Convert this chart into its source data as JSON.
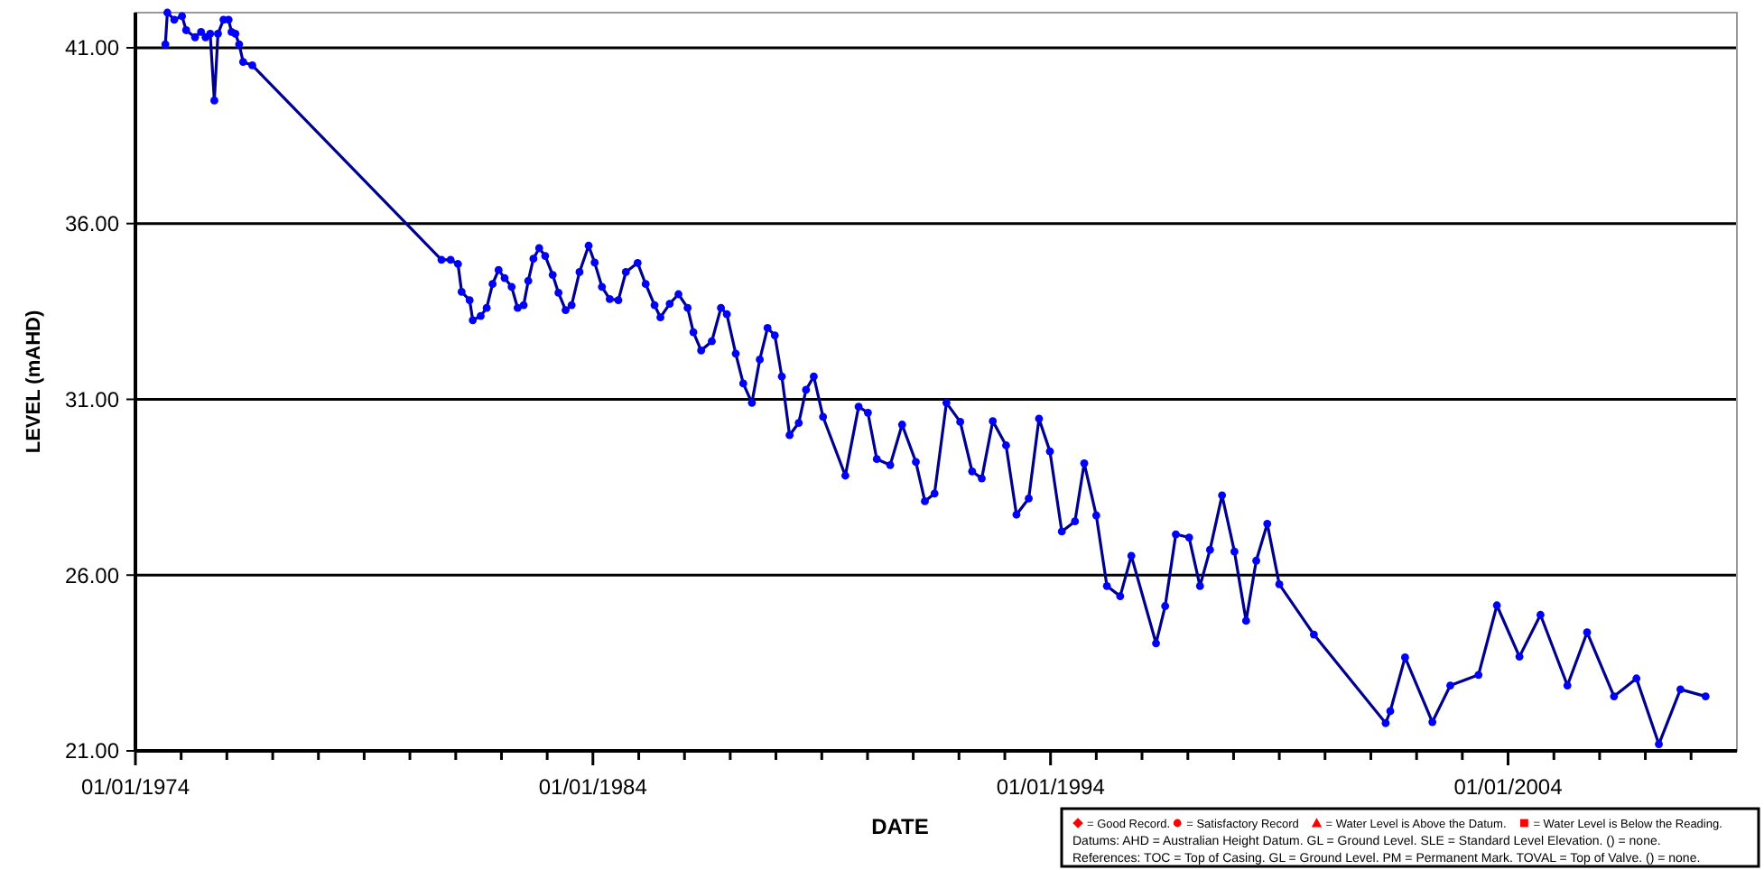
{
  "chart_data": {
    "type": "line",
    "xlabel": "DATE",
    "ylabel": "LEVEL (mAHD)",
    "xlim": [
      "1974-01-01",
      "2009-01-01"
    ],
    "xticks": [
      {
        "value": "1974-01-01",
        "label": "01/01/1974"
      },
      {
        "value": "1975-01-01",
        "label": null
      },
      {
        "value": "1976-01-01",
        "label": null
      },
      {
        "value": "1977-01-01",
        "label": null
      },
      {
        "value": "1978-01-01",
        "label": null
      },
      {
        "value": "1979-01-01",
        "label": null
      },
      {
        "value": "1980-01-01",
        "label": null
      },
      {
        "value": "1981-01-01",
        "label": null
      },
      {
        "value": "1982-01-01",
        "label": null
      },
      {
        "value": "1983-01-01",
        "label": null
      },
      {
        "value": "1984-01-01",
        "label": "01/01/1984"
      },
      {
        "value": "1985-01-01",
        "label": null
      },
      {
        "value": "1986-01-01",
        "label": null
      },
      {
        "value": "1987-01-01",
        "label": null
      },
      {
        "value": "1988-01-01",
        "label": null
      },
      {
        "value": "1989-01-01",
        "label": null
      },
      {
        "value": "1990-01-01",
        "label": null
      },
      {
        "value": "1991-01-01",
        "label": null
      },
      {
        "value": "1992-01-01",
        "label": null
      },
      {
        "value": "1993-01-01",
        "label": null
      },
      {
        "value": "1994-01-01",
        "label": "01/01/1994"
      },
      {
        "value": "1995-01-01",
        "label": null
      },
      {
        "value": "1996-01-01",
        "label": null
      },
      {
        "value": "1997-01-01",
        "label": null
      },
      {
        "value": "1998-01-01",
        "label": null
      },
      {
        "value": "1999-01-01",
        "label": null
      },
      {
        "value": "2000-01-01",
        "label": null
      },
      {
        "value": "2001-01-01",
        "label": null
      },
      {
        "value": "2002-01-01",
        "label": null
      },
      {
        "value": "2003-01-01",
        "label": null
      },
      {
        "value": "2004-01-01",
        "label": "01/01/2004"
      },
      {
        "value": "2005-01-01",
        "label": null
      },
      {
        "value": "2006-01-01",
        "label": null
      },
      {
        "value": "2007-01-01",
        "label": null
      },
      {
        "value": "2008-01-01",
        "label": null
      }
    ],
    "ylim": [
      21,
      42
    ],
    "yticks": [
      {
        "value": 21,
        "label": "21.00"
      },
      {
        "value": 26,
        "label": "26.00"
      },
      {
        "value": 31,
        "label": "31.00"
      },
      {
        "value": 36,
        "label": "36.00"
      },
      {
        "value": 41,
        "label": "41.00"
      }
    ],
    "grid": "y",
    "marker": "circle",
    "line_style": "solid",
    "x": [
      "1974-08-28",
      "1974-09-13",
      "1974-11-07",
      "1975-01-08",
      "1975-02-10",
      "1975-04-22",
      "1975-06-09",
      "1975-07-15",
      "1975-08-21",
      "1975-09-23",
      "1975-10-22",
      "1975-12-05",
      "1976-01-15",
      "1976-02-07",
      "1976-03-09",
      "1976-04-08",
      "1976-05-10",
      "1976-07-22",
      "1980-09-09",
      "1980-11-21",
      "1981-01-19",
      "1981-02-17",
      "1981-04-22",
      "1981-05-17",
      "1981-07-19",
      "1981-09-05",
      "1981-10-22",
      "1981-12-09",
      "1982-01-26",
      "1982-03-23",
      "1982-05-10",
      "1982-06-27",
      "1982-08-03",
      "1982-09-13",
      "1982-10-29",
      "1982-12-16",
      "1983-02-14",
      "1983-04-01",
      "1983-05-28",
      "1983-07-15",
      "1983-09-16",
      "1983-11-28",
      "1984-01-15",
      "1984-03-13",
      "1984-05-14",
      "1984-07-22",
      "1984-09-20",
      "1984-12-23",
      "1985-02-25",
      "1985-05-07",
      "1985-06-23",
      "1985-09-05",
      "1985-11-14",
      "1986-01-26",
      "1986-03-13",
      "1986-05-14",
      "1986-08-07",
      "1986-10-19",
      "1986-12-05",
      "1987-02-14",
      "1987-04-15",
      "1987-06-23",
      "1987-08-25",
      "1987-10-26",
      "1987-12-23",
      "1988-02-17",
      "1988-04-19",
      "1988-07-01",
      "1988-08-28",
      "1988-10-29",
      "1989-01-11",
      "1989-07-08",
      "1989-10-22",
      "1990-01-04",
      "1990-03-16",
      "1990-07-01",
      "1990-10-04",
      "1991-01-22",
      "1991-04-04",
      "1991-06-20",
      "1991-09-23",
      "1992-01-11",
      "1992-04-15",
      "1992-07-01",
      "1992-09-27",
      "1993-01-11",
      "1993-04-04",
      "1993-07-11",
      "1993-10-01",
      "1993-12-27",
      "1994-04-01",
      "1994-07-15",
      "1994-09-27",
      "1995-01-01",
      "1995-03-27",
      "1995-07-11",
      "1995-10-08",
      "1996-04-22",
      "1996-07-04",
      "1996-09-27",
      "1997-01-11",
      "1997-04-08",
      "1997-06-27",
      "1997-10-01",
      "1998-01-08",
      "1998-04-11",
      "1998-07-01",
      "1998-09-27",
      "1999-01-01",
      "1999-10-04",
      "2001-04-29",
      "2001-06-05",
      "2001-10-01",
      "2002-05-07",
      "2002-09-27",
      "2003-05-10",
      "2003-10-04",
      "2004-04-01",
      "2004-09-16",
      "2005-04-19",
      "2005-09-23",
      "2006-04-26",
      "2006-10-22",
      "2007-04-19",
      "2007-10-08",
      "2008-04-26"
    ],
    "series": [
      {
        "color": "#0000ff",
        "values": [
          41.1,
          42.0,
          41.8,
          41.9,
          41.5,
          41.3,
          41.45,
          41.3,
          41.4,
          39.5,
          41.4,
          41.8,
          41.8,
          41.45,
          41.4,
          41.1,
          40.6,
          40.5,
          34.97,
          34.97,
          34.85,
          34.06,
          33.82,
          33.25,
          33.37,
          33.6,
          34.28,
          34.68,
          34.45,
          34.2,
          33.6,
          33.68,
          34.37,
          35.0,
          35.3,
          35.08,
          34.54,
          34.03,
          33.54,
          33.68,
          34.62,
          35.37,
          34.89,
          34.2,
          33.85,
          33.82,
          34.62,
          34.88,
          34.28,
          33.68,
          33.33,
          33.72,
          33.99,
          33.6,
          32.91,
          32.39,
          32.65,
          33.6,
          33.42,
          32.3,
          31.45,
          30.9,
          32.13,
          33.03,
          32.82,
          31.65,
          29.98,
          30.33,
          31.27,
          31.65,
          30.5,
          28.83,
          30.79,
          30.62,
          29.3,
          29.13,
          30.28,
          29.22,
          28.1,
          28.32,
          30.9,
          30.36,
          28.95,
          28.75,
          30.38,
          29.69,
          27.72,
          28.18,
          30.45,
          29.52,
          27.24,
          27.53,
          29.18,
          27.7,
          25.69,
          25.4,
          26.55,
          24.06,
          25.12,
          27.16,
          27.07,
          25.69,
          26.72,
          28.27,
          26.67,
          24.7,
          26.41,
          27.46,
          25.74,
          24.31,
          21.79,
          22.13,
          23.66,
          21.82,
          22.86,
          23.16,
          25.14,
          23.68,
          24.87,
          22.86,
          24.37,
          22.55,
          23.06,
          21.19,
          22.75,
          22.55
        ]
      }
    ],
    "annotations": [
      "= Good Record.",
      "= Satisfactory Record",
      "= Water Level is Above the Datum.",
      "= Water Level is Below the Reading.",
      "Datums: AHD = Australian Height Datum. GL = Ground Level. SLE = Standard Level Elevation. () = none.",
      "References: TOC = Top of Casing. GL = Ground Level. PM = Permanent Mark. TOVAL = Top of Valve. () = none."
    ]
  }
}
